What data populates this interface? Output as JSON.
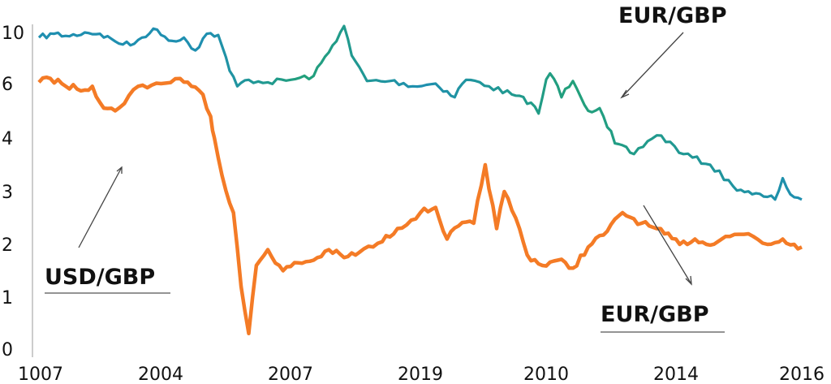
{
  "chart_data": {
    "type": "line",
    "title": "",
    "xlabel": "",
    "ylabel": "",
    "x_tick_labels": [
      "1007",
      "2004",
      "2007",
      "2019",
      "2010",
      "2014",
      "2016"
    ],
    "y_tick_labels": [
      "0",
      "1",
      "2",
      "3",
      "4",
      "6",
      "10"
    ],
    "annotations": {
      "top_label": "EUR/GBP",
      "left_label": "USD/GBP",
      "bottom_label": "EUR/GBP"
    },
    "colors": {
      "upper": "#1f8fb0",
      "upper_alt": "#22a07a",
      "lower": "#f47b26"
    },
    "grid": false,
    "legend": "none",
    "series": [
      {
        "color_key": "upper",
        "values": [
          [
            0.0,
            9.6
          ],
          [
            0.02,
            9.9
          ],
          [
            0.04,
            9.7
          ],
          [
            0.06,
            10.0
          ],
          [
            0.08,
            9.9
          ],
          [
            0.1,
            9.3
          ],
          [
            0.12,
            9.0
          ],
          [
            0.135,
            9.6
          ],
          [
            0.15,
            10.3
          ],
          [
            0.16,
            9.8
          ],
          [
            0.18,
            9.3
          ],
          [
            0.19,
            9.6
          ],
          [
            0.205,
            8.6
          ],
          [
            0.22,
            9.9
          ],
          [
            0.235,
            9.8
          ],
          [
            0.25,
            7.0
          ],
          [
            0.26,
            5.9
          ],
          [
            0.275,
            6.3
          ],
          [
            0.3,
            6.1
          ],
          [
            0.33,
            6.3
          ],
          [
            0.36,
            6.6
          ],
          [
            0.385,
            9.0
          ],
          [
            0.4,
            10.5
          ],
          [
            0.41,
            8.2
          ],
          [
            0.43,
            6.2
          ],
          [
            0.46,
            6.2
          ],
          [
            0.49,
            5.9
          ],
          [
            0.52,
            6.0
          ],
          [
            0.545,
            5.5
          ],
          [
            0.56,
            6.3
          ],
          [
            0.59,
            5.9
          ],
          [
            0.62,
            5.6
          ],
          [
            0.645,
            5.3
          ],
          [
            0.655,
            4.9
          ],
          [
            0.67,
            6.8
          ],
          [
            0.685,
            5.5
          ],
          [
            0.7,
            6.2
          ],
          [
            0.72,
            5.0
          ],
          [
            0.735,
            5.1
          ],
          [
            0.745,
            4.4
          ],
          [
            0.755,
            3.9
          ],
          [
            0.78,
            3.7
          ],
          [
            0.81,
            4.1
          ],
          [
            0.845,
            3.7
          ],
          [
            0.88,
            3.5
          ],
          [
            0.91,
            3.1
          ],
          [
            0.935,
            2.95
          ],
          [
            0.955,
            2.9
          ],
          [
            0.965,
            2.85
          ],
          [
            0.975,
            3.25
          ],
          [
            0.985,
            2.95
          ],
          [
            1.0,
            2.85
          ]
        ]
      },
      {
        "color_key": "lower",
        "values": [
          [
            0.0,
            6.1
          ],
          [
            0.015,
            6.4
          ],
          [
            0.03,
            6.0
          ],
          [
            0.05,
            5.8
          ],
          [
            0.07,
            5.9
          ],
          [
            0.085,
            5.1
          ],
          [
            0.1,
            5.0
          ],
          [
            0.13,
            5.9
          ],
          [
            0.16,
            6.0
          ],
          [
            0.185,
            6.4
          ],
          [
            0.2,
            5.9
          ],
          [
            0.215,
            5.6
          ],
          [
            0.225,
            4.8
          ],
          [
            0.23,
            4.0
          ],
          [
            0.24,
            3.3
          ],
          [
            0.255,
            2.6
          ],
          [
            0.265,
            1.2
          ],
          [
            0.275,
            0.3
          ],
          [
            0.285,
            1.6
          ],
          [
            0.3,
            1.9
          ],
          [
            0.32,
            1.5
          ],
          [
            0.34,
            1.65
          ],
          [
            0.36,
            1.7
          ],
          [
            0.38,
            1.9
          ],
          [
            0.4,
            1.75
          ],
          [
            0.42,
            1.85
          ],
          [
            0.45,
            2.05
          ],
          [
            0.47,
            2.3
          ],
          [
            0.5,
            2.6
          ],
          [
            0.52,
            2.7
          ],
          [
            0.535,
            2.1
          ],
          [
            0.55,
            2.35
          ],
          [
            0.57,
            2.4
          ],
          [
            0.585,
            3.5
          ],
          [
            0.6,
            2.3
          ],
          [
            0.61,
            3.0
          ],
          [
            0.625,
            2.5
          ],
          [
            0.64,
            1.8
          ],
          [
            0.66,
            1.6
          ],
          [
            0.68,
            1.7
          ],
          [
            0.7,
            1.55
          ],
          [
            0.72,
            1.95
          ],
          [
            0.745,
            2.25
          ],
          [
            0.765,
            2.6
          ],
          [
            0.79,
            2.4
          ],
          [
            0.8,
            2.35
          ],
          [
            0.82,
            2.2
          ],
          [
            0.84,
            2.0
          ],
          [
            0.86,
            2.1
          ],
          [
            0.875,
            2.0
          ],
          [
            0.9,
            2.15
          ],
          [
            0.93,
            2.2
          ],
          [
            0.955,
            2.0
          ],
          [
            0.975,
            2.1
          ],
          [
            0.99,
            2.0
          ],
          [
            1.0,
            1.95
          ]
        ]
      }
    ]
  }
}
